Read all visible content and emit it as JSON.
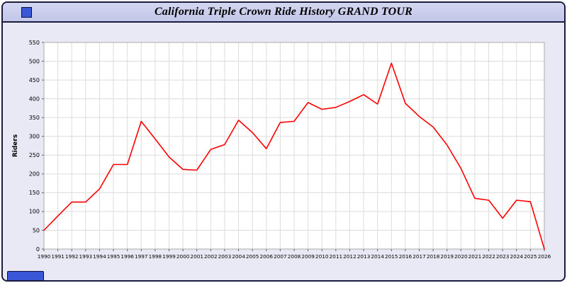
{
  "window": {
    "title": "California Triple Crown Ride History GRAND TOUR"
  },
  "colors": {
    "line": "#ff0000",
    "titlebar_bg": "#ccd0ee",
    "panel_bg": "#e9e9f5",
    "plot_bg": "#ffffff",
    "grid": "#dcdcdc",
    "plot_border": "#aaaaaa",
    "axis_text": "#000000",
    "window_border": "#1b1b3f",
    "bottom_button": "#3a57d8"
  },
  "chart_data": {
    "type": "line",
    "title": "California Triple Crown Ride History GRAND TOUR",
    "xlabel": "",
    "ylabel": "Riders",
    "ylim": [
      0,
      550
    ],
    "ytick_step": 50,
    "grid": true,
    "legend": false,
    "x": [
      1990,
      1991,
      1992,
      1993,
      1994,
      1995,
      1996,
      1997,
      1998,
      1999,
      2000,
      2001,
      2002,
      2003,
      2004,
      2005,
      2006,
      2007,
      2008,
      2009,
      2010,
      2011,
      2012,
      2013,
      2014,
      2015,
      2016,
      2017,
      2018,
      2019,
      2020,
      2021,
      2022,
      2023,
      2024,
      2025,
      2026
    ],
    "series": [
      {
        "name": "Riders",
        "color": "#ff0000",
        "values": [
          50,
          88,
          125,
          125,
          160,
          225,
          225,
          340,
          293,
          245,
          212,
          210,
          265,
          278,
          343,
          310,
          267,
          337,
          340,
          390,
          372,
          377,
          393,
          411,
          386,
          495,
          388,
          353,
          325,
          277,
          215,
          135,
          130,
          82,
          130,
          126,
          0
        ]
      }
    ]
  }
}
